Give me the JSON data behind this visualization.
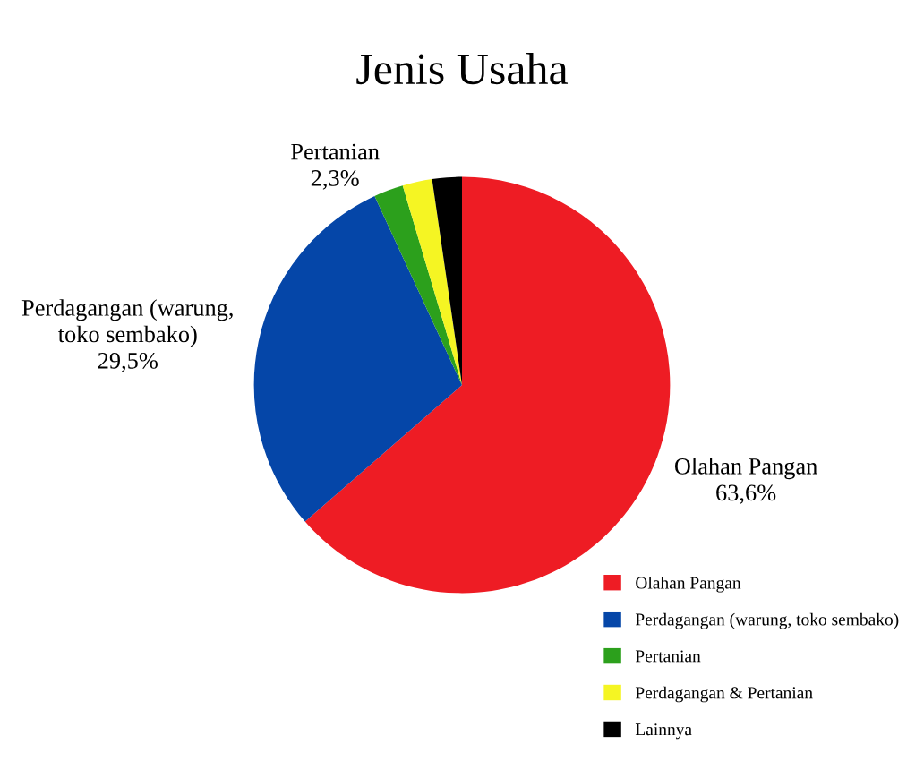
{
  "chart_data": {
    "type": "pie",
    "title": "Jenis Usaha",
    "categories": [
      "Olahan Pangan",
      "Perdagangan (warung, toko sembako)",
      "Pertanian",
      "Perdagangan & Pertanian",
      "Lainnya"
    ],
    "values": [
      63.6,
      29.5,
      2.3,
      2.3,
      2.3
    ],
    "value_labels": [
      "63,6%",
      "29,5%",
      "2,3%",
      null,
      null
    ],
    "colors": [
      "#ee1c24",
      "#0546a8",
      "#2ca01c",
      "#f5f523",
      "#000000"
    ],
    "legend": "bottom right"
  }
}
